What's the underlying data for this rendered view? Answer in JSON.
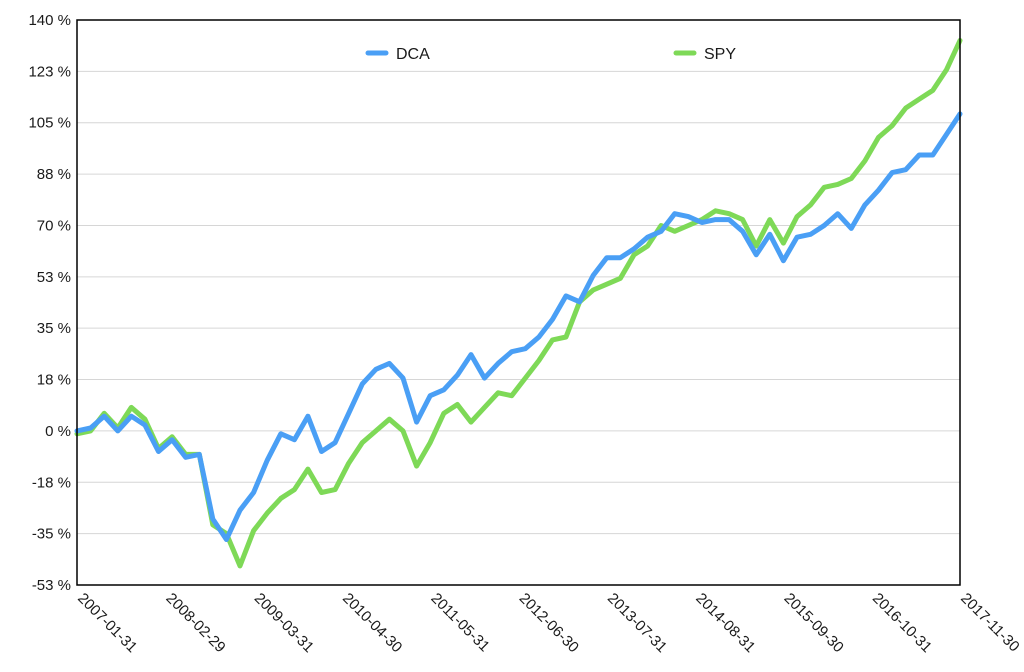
{
  "chart_data": {
    "type": "line",
    "title": "",
    "xlabel": "",
    "ylabel": "",
    "y_ticks": [
      "140 %",
      "123 %",
      "105 %",
      "88 %",
      "70 %",
      "53 %",
      "35 %",
      "18 %",
      "0 %",
      "-18 %",
      "-35 %",
      "-53 %"
    ],
    "x_ticks": [
      "2007-01-31",
      "2008-02-29",
      "2009-03-31",
      "2010-04-30",
      "2011-05-31",
      "2012-06-30",
      "2013-07-31",
      "2014-08-31",
      "2015-09-30",
      "2016-10-31",
      "2017-11-30"
    ],
    "ylim": [
      -52.5,
      140
    ],
    "xlim": [
      0,
      130
    ],
    "grid": true,
    "legend_position": "top",
    "series": [
      {
        "name": "DCA",
        "color": "#4a9ff5",
        "x": [
          0,
          2,
          4,
          6,
          8,
          10,
          12,
          14,
          16,
          18,
          20,
          22,
          24,
          26,
          28,
          30,
          32,
          34,
          36,
          38,
          40,
          42,
          44,
          46,
          48,
          50,
          52,
          54,
          56,
          58,
          60,
          62,
          64,
          66,
          68,
          70,
          72,
          74,
          76,
          78,
          80,
          82,
          84,
          86,
          88,
          90,
          92,
          94,
          96,
          98,
          100,
          102,
          104,
          106,
          108,
          110,
          112,
          114,
          116,
          118,
          120,
          122,
          124,
          126,
          128,
          130
        ],
        "values": [
          0,
          1,
          5,
          0,
          5,
          2,
          -7,
          -3,
          -9,
          -8,
          -30,
          -37,
          -27,
          -21,
          -10,
          -1,
          -3,
          5,
          -7,
          -4,
          6,
          16,
          21,
          23,
          18,
          3,
          12,
          14,
          19,
          26,
          18,
          23,
          27,
          28,
          32,
          38,
          46,
          44,
          53,
          59,
          59,
          62,
          66,
          68,
          74,
          73,
          71,
          72,
          72,
          68,
          60,
          67,
          58,
          66,
          67,
          70,
          74,
          69,
          77,
          82,
          88,
          89,
          94,
          94,
          101,
          108
        ]
      },
      {
        "name": "SPY",
        "color": "#7ed957",
        "x": [
          0,
          2,
          4,
          6,
          8,
          10,
          12,
          14,
          16,
          18,
          20,
          22,
          24,
          26,
          28,
          30,
          32,
          34,
          36,
          38,
          40,
          42,
          44,
          46,
          48,
          50,
          52,
          54,
          56,
          58,
          60,
          62,
          64,
          66,
          68,
          70,
          72,
          74,
          76,
          78,
          80,
          82,
          84,
          86,
          88,
          90,
          92,
          94,
          96,
          98,
          100,
          102,
          104,
          106,
          108,
          110,
          112,
          114,
          116,
          118,
          120,
          122,
          124,
          126,
          128,
          130
        ],
        "values": [
          -1,
          0,
          6,
          1,
          8,
          4,
          -6,
          -2,
          -8,
          -8,
          -32,
          -35,
          -46,
          -34,
          -28,
          -23,
          -20,
          -13,
          -21,
          -20,
          -11,
          -4,
          0,
          4,
          0,
          -12,
          -4,
          6,
          9,
          3,
          8,
          13,
          12,
          18,
          24,
          31,
          32,
          44,
          48,
          50,
          52,
          60,
          63,
          70,
          68,
          70,
          72,
          75,
          74,
          72,
          63,
          72,
          64,
          73,
          77,
          83,
          84,
          86,
          92,
          100,
          104,
          110,
          113,
          116,
          123,
          133
        ]
      }
    ]
  }
}
